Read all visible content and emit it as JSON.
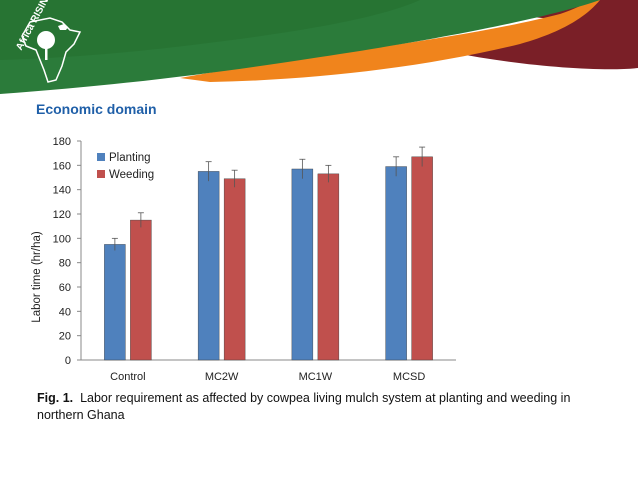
{
  "header": {
    "logo_text": "Africa RISING",
    "colors": {
      "green": "#2b7b3a",
      "orange": "#f0841c",
      "maroon": "#7a1f27"
    }
  },
  "section": {
    "title": "Economic domain"
  },
  "chart_data": {
    "type": "bar",
    "title": "",
    "xlabel": "",
    "ylabel": "Labor time (hr/ha)",
    "ylim": [
      0,
      180
    ],
    "yticks": [
      0,
      20,
      40,
      60,
      80,
      100,
      120,
      140,
      160,
      180
    ],
    "categories": [
      "Control",
      "MC2W",
      "MC1W",
      "MCSD"
    ],
    "legend_position": "top-left",
    "series": [
      {
        "name": "Planting",
        "color": "#4f81bd",
        "values": [
          95,
          155,
          157,
          159
        ],
        "errors": [
          5,
          8,
          8,
          8
        ]
      },
      {
        "name": "Weeding",
        "color": "#c0504d",
        "values": [
          115,
          149,
          153,
          167
        ],
        "errors": [
          6,
          7,
          7,
          8
        ]
      }
    ]
  },
  "caption": {
    "label": "Fig. 1.",
    "text": "Labor requirement as affected by cowpea living mulch system at planting and weeding in northern Ghana"
  }
}
